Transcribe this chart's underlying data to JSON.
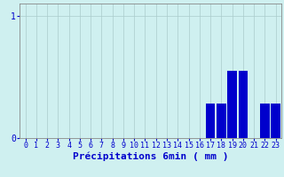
{
  "categories": [
    0,
    1,
    2,
    3,
    4,
    5,
    6,
    7,
    8,
    9,
    10,
    11,
    12,
    13,
    14,
    15,
    16,
    17,
    18,
    19,
    20,
    21,
    22,
    23
  ],
  "values": [
    0,
    0,
    0,
    0,
    0,
    0,
    0,
    0,
    0,
    0,
    0,
    0,
    0,
    0,
    0,
    0,
    0,
    0.28,
    0.28,
    0.55,
    0.55,
    0,
    0.28,
    0.28
  ],
  "bar_color": "#0000cc",
  "bg_color": "#cff0f0",
  "grid_color": "#aacccc",
  "axis_color": "#888888",
  "xlabel": "Précipitations 6min ( mm )",
  "xlabel_color": "#0000cc",
  "yticks": [
    0,
    1
  ],
  "ylim": [
    0,
    1.1
  ],
  "xlim": [
    -0.5,
    23.5
  ],
  "tick_color": "#0000cc",
  "tick_fontsize": 6,
  "xlabel_fontsize": 8
}
